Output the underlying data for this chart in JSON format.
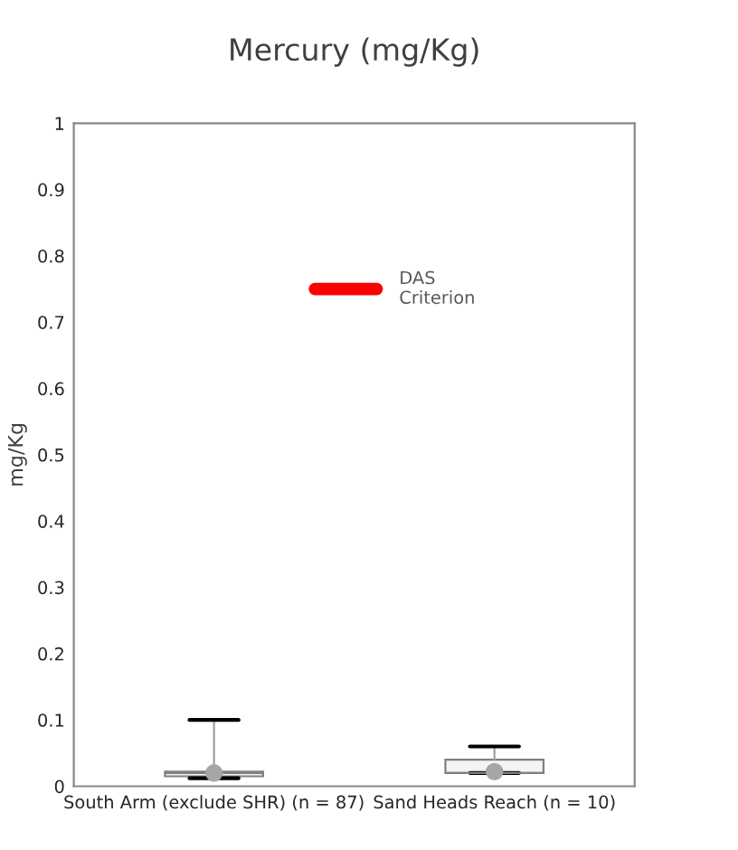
{
  "chart_data": {
    "type": "box",
    "title": "Mercury (mg/Kg)",
    "ylabel": "mg/Kg",
    "categories": [
      "South Arm (exclude SHR) (n = 87)",
      "Sand Heads Reach (n = 10)"
    ],
    "boxes": [
      {
        "low": 0.012,
        "q1": 0.015,
        "median": 0.02,
        "q3": 0.022,
        "high": 0.1,
        "mean": 0.02
      },
      {
        "low": 0.02,
        "q1": 0.02,
        "median": 0.02,
        "q3": 0.04,
        "high": 0.06,
        "mean": 0.022
      }
    ],
    "ylim": [
      0,
      1
    ],
    "yticks": [
      0,
      0.1,
      0.2,
      0.3,
      0.4,
      0.5,
      0.6,
      0.7,
      0.8,
      0.9,
      1
    ],
    "ref_lines": [
      {
        "axis": "y",
        "value": 0.75,
        "label": "DAS\nCriterion",
        "color": "#ff0000"
      }
    ],
    "grid": false,
    "legend": false
  }
}
